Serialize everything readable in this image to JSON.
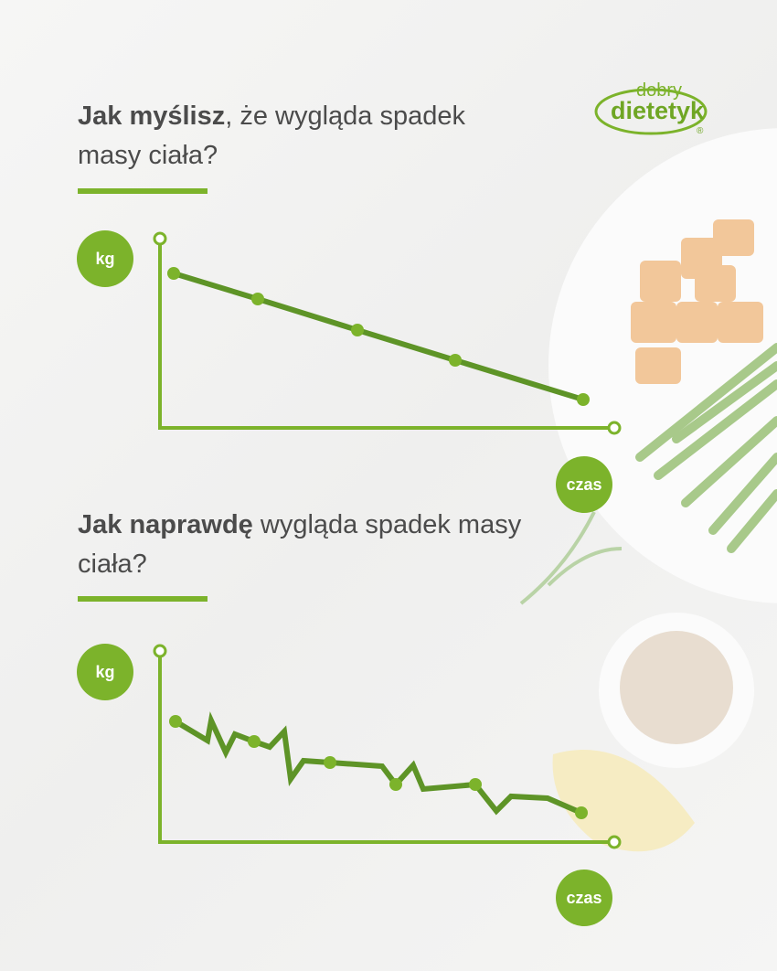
{
  "logo": {
    "line1": "dobry",
    "line2": "dietetyk",
    "mark": "®"
  },
  "section1": {
    "title_bold": "Jak myślisz",
    "title_rest": ", że wygląda spadek masy ciała?",
    "y_label": "kg",
    "x_label": "czas"
  },
  "section2": {
    "title_bold": "Jak naprawdę",
    "title_rest": " wygląda spadek masy ciała?",
    "y_label": "kg",
    "x_label": "czas"
  },
  "colors": {
    "accent": "#7cb32b",
    "line": "#5e9427",
    "text": "#4b4b4b"
  }
}
